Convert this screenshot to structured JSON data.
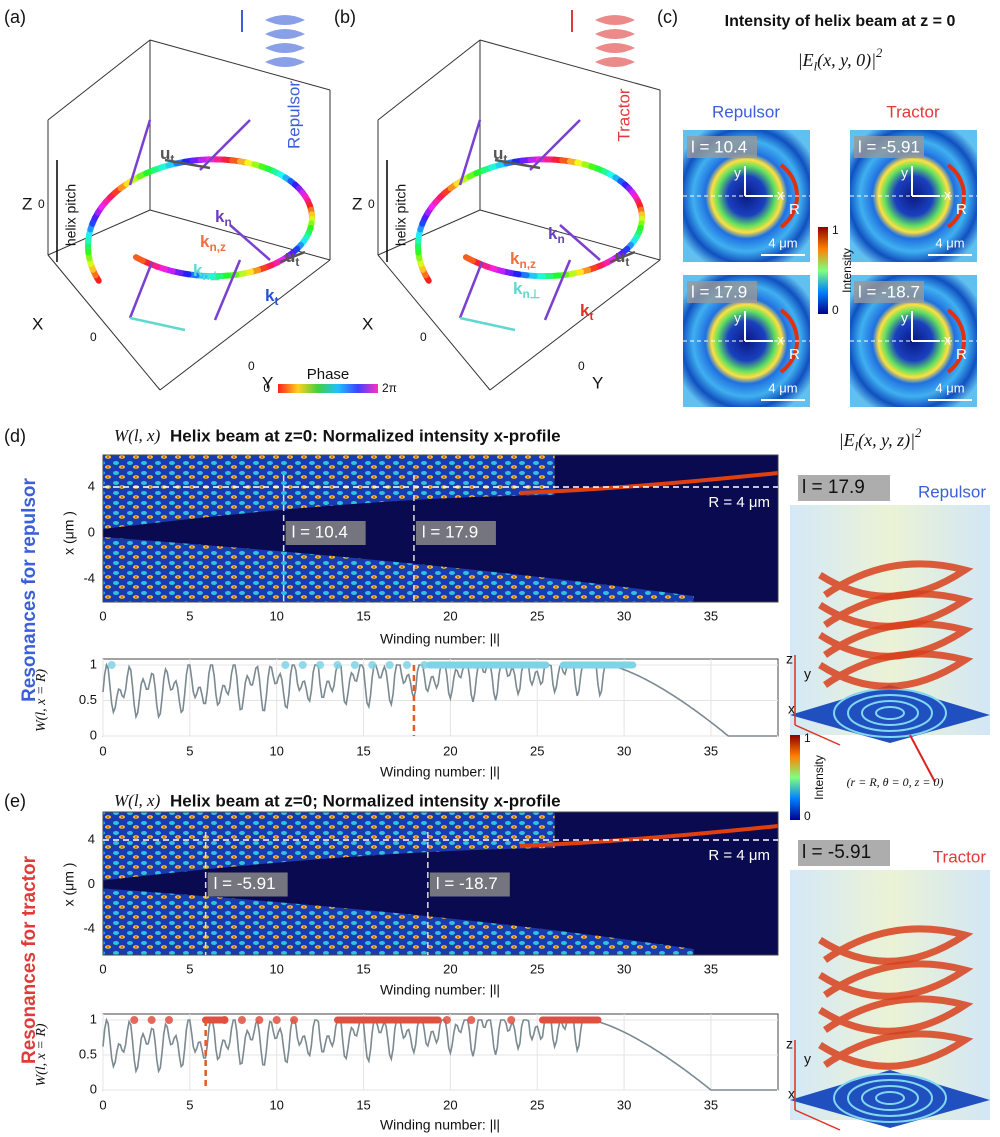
{
  "panel_a": {
    "label": "(a)",
    "beam": "Repulsor",
    "axes": {
      "z": "Z",
      "x": "X",
      "y": "Y"
    },
    "ticks": {
      "z": 0,
      "x": 0,
      "y": 0
    },
    "pitch": "helix pitch",
    "vectors": [
      {
        "main": "u",
        "sub": "t"
      },
      {
        "main": "k",
        "sub": "n"
      },
      {
        "main": "k",
        "sub": "n,z"
      },
      {
        "main": "k",
        "sub": "n⊥"
      },
      {
        "main": "u",
        "sub": "t"
      },
      {
        "main": "k",
        "sub": "t"
      }
    ]
  },
  "panel_b": {
    "label": "(b)",
    "beam": "Tractor",
    "axes": {
      "z": "Z",
      "x": "X",
      "y": "Y"
    },
    "ticks": {
      "z": 0,
      "x": 0,
      "y": 0
    },
    "pitch": "helix pitch",
    "vectors": [
      {
        "main": "u",
        "sub": "t"
      },
      {
        "main": "k",
        "sub": "n"
      },
      {
        "main": "k",
        "sub": "n,z"
      },
      {
        "main": "k",
        "sub": "n⊥"
      },
      {
        "main": "u",
        "sub": "t"
      },
      {
        "main": "k",
        "sub": "t"
      }
    ]
  },
  "phase_bar": {
    "title": "Phase",
    "min": "0",
    "max": "2π"
  },
  "panel_c": {
    "label": "(c)",
    "title": "Intensity of helix beam at z = 0",
    "formula": {
      "base": "|E",
      "sub": "l",
      "args": "(x, y, 0)|",
      "sup": "2"
    },
    "columns": [
      "Repulsor",
      "Tractor"
    ],
    "tiles": [
      {
        "l": "l = 10.4",
        "y": "y",
        "x": "x",
        "r": "R",
        "scale": "4 μm"
      },
      {
        "l": "l = -5.91",
        "y": "y",
        "x": "x",
        "r": "R",
        "scale": "4 μm"
      },
      {
        "l": "l = 17.9",
        "y": "y",
        "x": "x",
        "r": "R",
        "scale": "4 μm"
      },
      {
        "l": "l = -18.7",
        "y": "y",
        "x": "x",
        "r": "R",
        "scale": "4 μm"
      }
    ],
    "colorbar": {
      "max": 1,
      "min": 0,
      "label": "Intensity"
    }
  },
  "panel_d": {
    "label": "(d)",
    "side_title": "Resonances for repulsor",
    "map_name": "W(l, x)",
    "title": "Helix beam at z=0: Normalized intensity x-profile",
    "map_ylabel": "x (μm )",
    "map_yticks": [
      4,
      0,
      -4
    ],
    "xticks": [
      0,
      5,
      10,
      15,
      20,
      25,
      30,
      35
    ],
    "xlabel": "Winding number:  |l|",
    "marks": [
      "l = 10.4",
      "l = 17.9"
    ],
    "radius": "R = 4 μm",
    "line_ylabel": "W(l, x = R)",
    "line_yticks": [
      0,
      0.5,
      1
    ],
    "view": {
      "formula": {
        "base": "|E",
        "sub": "l",
        "args": "(x, y, z)|",
        "sup": "2"
      },
      "l": "l = 17.9",
      "beam": "Repulsor",
      "axes": [
        "z",
        "y",
        "x"
      ],
      "colorbar": {
        "max": 1,
        "min": 0,
        "label": "Intensity"
      },
      "point": "(r = R,  θ = 0,  z = 0)"
    }
  },
  "panel_e": {
    "label": "(e)",
    "side_title": "Resonances for tractor",
    "map_name": "W(l, x)",
    "title": "Helix beam at z=0; Normalized intensity x-profile",
    "map_ylabel": "x (μm )",
    "map_yticks": [
      4,
      0,
      -4
    ],
    "xticks": [
      0,
      5,
      10,
      15,
      20,
      25,
      30,
      35
    ],
    "xlabel": "Winding number:  |l|",
    "marks": [
      "l = -5.91",
      "l = -18.7"
    ],
    "radius": "R = 4 μm",
    "line_ylabel": "W(l, x = R)",
    "line_yticks": [
      0,
      0.5,
      1
    ],
    "view": {
      "l": "l = -5.91",
      "beam": "Tractor",
      "axes": [
        "z",
        "y",
        "x"
      ]
    }
  }
}
